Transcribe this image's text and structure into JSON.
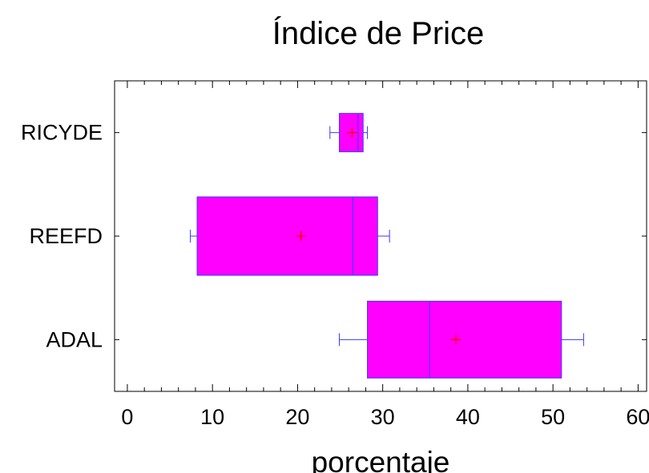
{
  "chart_data": {
    "type": "boxplot",
    "title": "Índice de Price",
    "xlabel": "porcentaje",
    "xlim": [
      -1.5,
      61
    ],
    "xticks": [
      0,
      10,
      20,
      30,
      40,
      50,
      60
    ],
    "xtick_labels": [
      "0",
      "10",
      "20",
      "30",
      "40",
      "50",
      "60"
    ],
    "grid": false,
    "orientation": "horizontal",
    "categories": [
      "RICYDE",
      "REEFD",
      "ADAL"
    ],
    "boxes": [
      {
        "category": "RICYDE",
        "whisker_low": 23.8,
        "q1": 24.9,
        "median": 27.1,
        "q3": 27.7,
        "whisker_high": 28.2,
        "mean": 26.4
      },
      {
        "category": "REEFD",
        "whisker_low": 7.4,
        "q1": 8.2,
        "median": 26.5,
        "q3": 29.4,
        "whisker_high": 30.8,
        "mean": 20.4
      },
      {
        "category": "ADAL",
        "whisker_low": 24.9,
        "q1": 28.2,
        "median": 35.5,
        "q3": 51.0,
        "whisker_high": 53.6,
        "mean": 38.6
      }
    ],
    "colors": {
      "box_fill": "#ff00ff",
      "box_stroke": "#3a3aff",
      "mean_marker": "#ff0000"
    }
  }
}
